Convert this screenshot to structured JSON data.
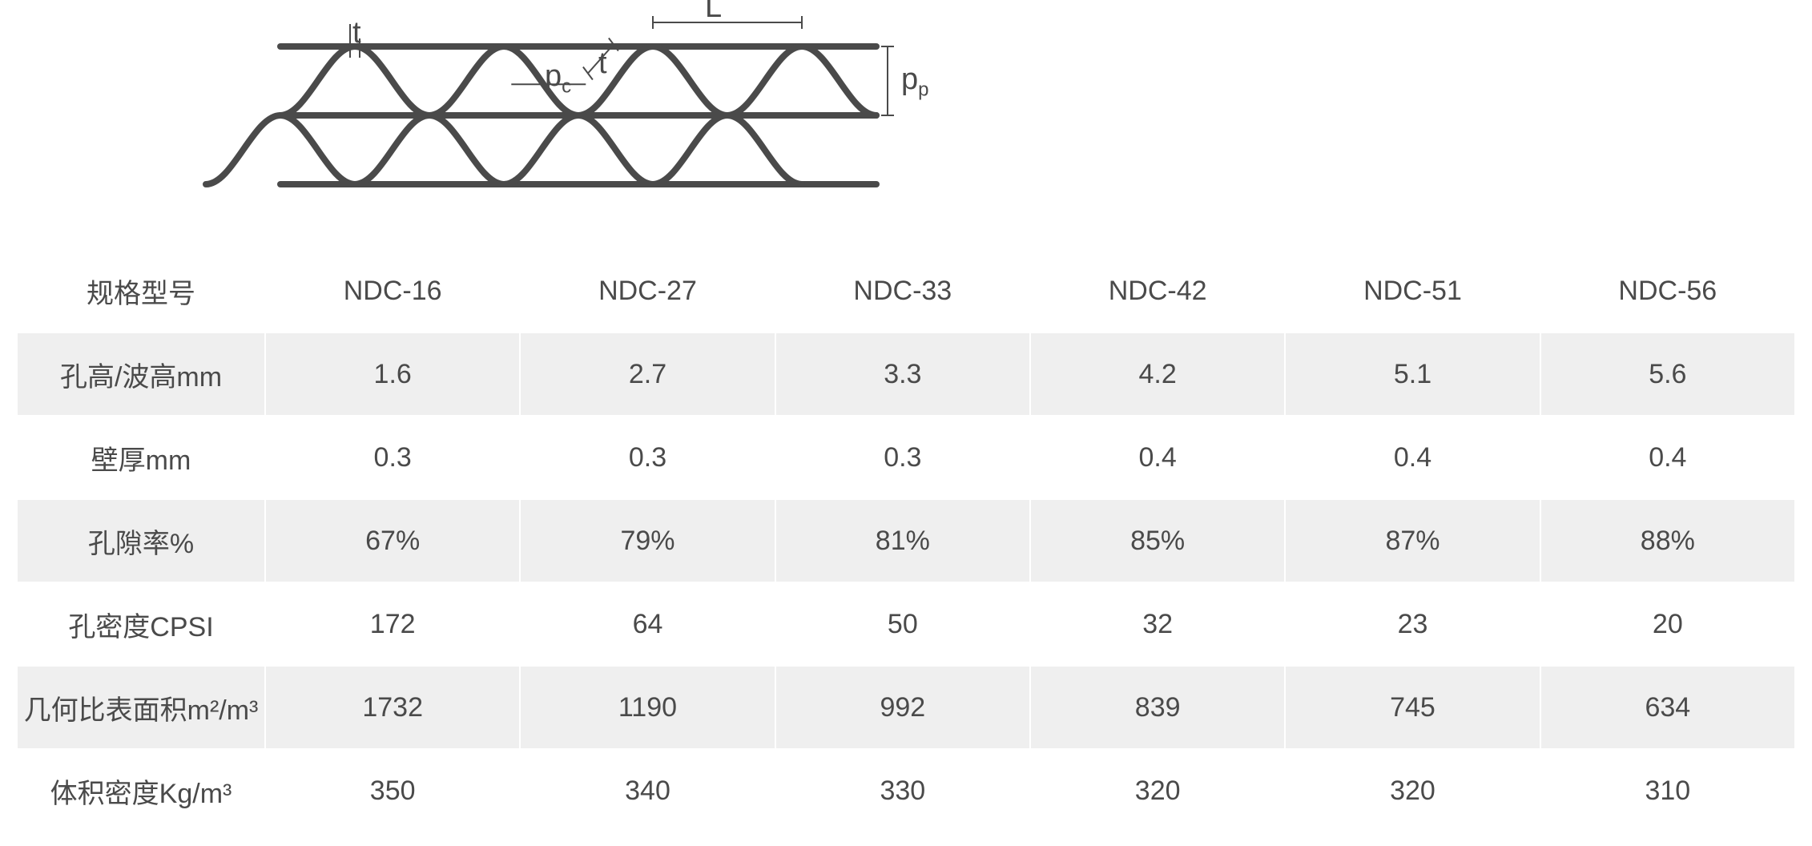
{
  "diagram": {
    "stroke": "#4a4a4a",
    "line_width": 8,
    "layers": 2,
    "waves_per_layer": 4,
    "layer_height": 86,
    "wave_period": 186,
    "labels": {
      "t": "t",
      "t2": "t",
      "L": "L",
      "pc": "p",
      "pc_sub": "c",
      "pp": "p",
      "pp_sub": "p"
    },
    "label_fontsize": 38,
    "label_color": "#4a4a4a"
  },
  "table": {
    "row_header_bg": "#ffffff",
    "stripe_bg": "#efefef",
    "plain_bg": "#ffffff",
    "cell_fontsize": 34,
    "text_color": "#4a4a4a",
    "border_color": "#ffffff",
    "columns": [
      "规格型号",
      "NDC-16",
      "NDC-27",
      "NDC-33",
      "NDC-42",
      "NDC-51",
      "NDC-56"
    ],
    "rows": [
      {
        "label": "孔高/波高mm",
        "values": [
          "1.6",
          "2.7",
          "3.3",
          "4.2",
          "5.1",
          "5.6"
        ],
        "stripe": true
      },
      {
        "label": "壁厚mm",
        "values": [
          "0.3",
          "0.3",
          "0.3",
          "0.4",
          "0.4",
          "0.4"
        ],
        "stripe": false
      },
      {
        "label": "孔隙率%",
        "values": [
          "67%",
          "79%",
          "81%",
          "85%",
          "87%",
          "88%"
        ],
        "stripe": true
      },
      {
        "label": "孔密度CPSI",
        "values": [
          "172",
          "64",
          "50",
          "32",
          "23",
          "20"
        ],
        "stripe": false
      },
      {
        "label": "几何比表面积m²/m³",
        "values": [
          "1732",
          "1190",
          "992",
          "839",
          "745",
          "634"
        ],
        "stripe": true
      },
      {
        "label": "体积密度Kg/m³",
        "values": [
          "350",
          "340",
          "330",
          "320",
          "320",
          "310"
        ],
        "stripe": false
      }
    ]
  }
}
